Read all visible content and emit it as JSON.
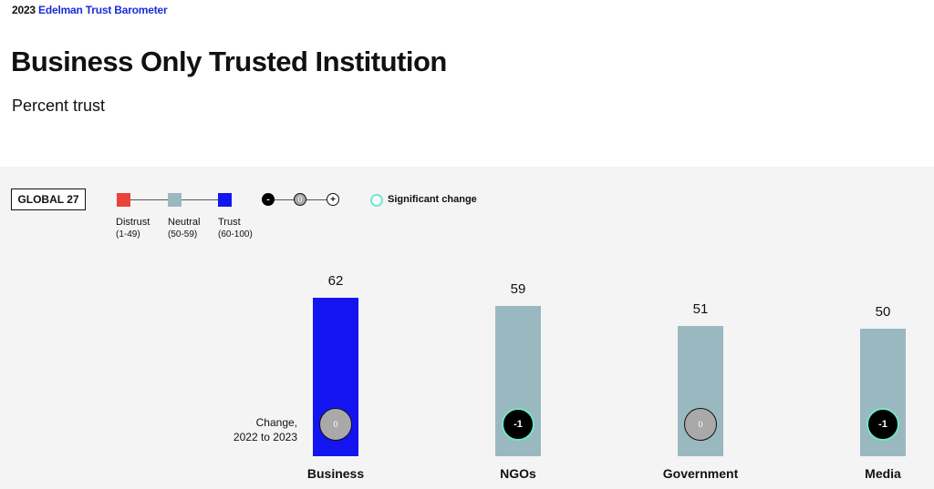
{
  "header": {
    "year": "2023",
    "brand": "Edelman Trust Barometer",
    "title": "Business Only Trusted Institution",
    "subtitle": "Percent trust"
  },
  "legend": {
    "region": "GLOBAL 27",
    "scale": [
      {
        "label": "Distrust",
        "range": "(1-49)",
        "color": "#e8443a"
      },
      {
        "label": "Neutral",
        "range": "(50-59)",
        "color": "#9ab8bf"
      },
      {
        "label": "Trust",
        "range": "(60-100)",
        "color": "#1414f0"
      }
    ],
    "change_symbols": [
      "-",
      "0",
      "+"
    ],
    "significant_label": "Significant change",
    "significant_color": "#6ee8c8"
  },
  "change_caption": {
    "line1": "Change,",
    "line2": "2022 to 2023"
  },
  "chart_data": {
    "type": "bar",
    "categories": [
      "Business",
      "NGOs",
      "Government",
      "Media"
    ],
    "values": [
      62,
      59,
      51,
      50
    ],
    "changes": [
      "0",
      "-1",
      "0",
      "-1"
    ],
    "significant": [
      false,
      true,
      false,
      true
    ],
    "colors": [
      "#1414f0",
      "#9ab8bf",
      "#9ab8bf",
      "#9ab8bf"
    ]
  }
}
